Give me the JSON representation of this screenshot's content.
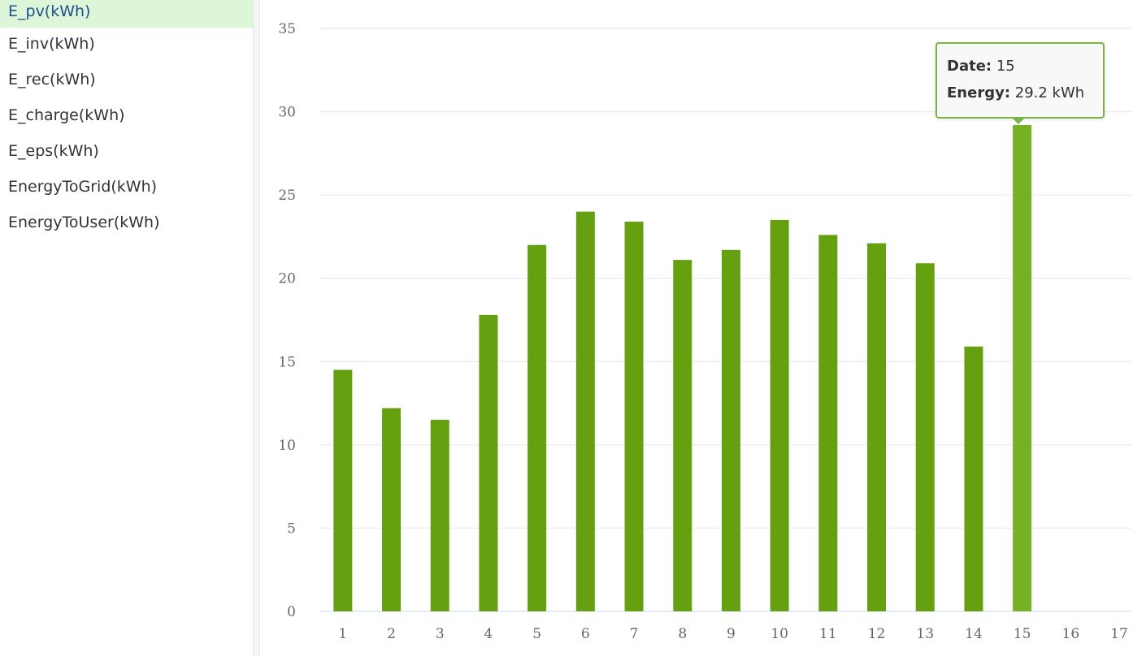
{
  "sidebar": {
    "items": [
      {
        "label": "E_pv(kWh)",
        "active": true
      },
      {
        "label": "E_inv(kWh)"
      },
      {
        "label": "E_rec(kWh)"
      },
      {
        "label": "E_charge(kWh)"
      },
      {
        "label": "E_eps(kWh)"
      },
      {
        "label": "EnergyToGrid(kWh)"
      },
      {
        "label": "EnergyToUser(kWh)"
      }
    ]
  },
  "tooltip": {
    "date_label": "Date:",
    "date_value": "15",
    "energy_label": "Energy:",
    "energy_value": "29.2 kWh"
  },
  "colors": {
    "bar": "#65a011",
    "bar_highlight": "#74b124",
    "sidebar_active_bg": "#def6d8",
    "grid": "#e6e6e6"
  },
  "chart_data": {
    "type": "bar",
    "categories": [
      "1",
      "2",
      "3",
      "4",
      "5",
      "6",
      "7",
      "8",
      "9",
      "10",
      "11",
      "12",
      "13",
      "14",
      "15",
      "16",
      "17"
    ],
    "values": [
      14.5,
      12.2,
      11.5,
      17.8,
      22.0,
      24.0,
      23.4,
      21.1,
      21.7,
      23.5,
      22.6,
      22.1,
      20.9,
      15.9,
      29.2,
      null,
      null
    ],
    "highlight_index": 14,
    "ylim": [
      0,
      35
    ],
    "yticks": [
      0,
      5,
      10,
      15,
      20,
      25,
      30,
      35
    ],
    "grid": true,
    "title": "",
    "xlabel": "",
    "ylabel": ""
  }
}
